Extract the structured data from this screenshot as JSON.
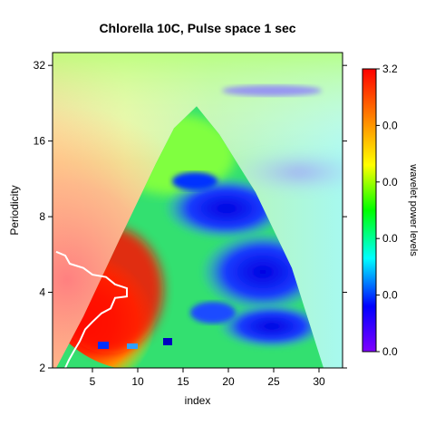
{
  "chart_data": {
    "type": "heatmap",
    "title": "Chlorella 10C, Pulse space 1 sec",
    "xlabel": "index",
    "ylabel": "Periodicity",
    "xlim": [
      0.6,
      32.6
    ],
    "ylim": [
      2,
      36
    ],
    "y_scale": "log2",
    "x_ticks": [
      5,
      10,
      15,
      20,
      25,
      30
    ],
    "x_tick_labels": [
      "5",
      "10",
      "15",
      "20",
      "25",
      "30"
    ],
    "y_ticks": [
      2,
      4,
      8,
      16,
      32
    ],
    "y_tick_labels": [
      "2",
      "4",
      "8",
      "16",
      "32"
    ],
    "colorbar": {
      "label": "wavelet power levels",
      "tick_labels": [
        "3.2",
        "0.0",
        "0.0",
        "0.0",
        "0.0",
        "0.0"
      ],
      "colors": [
        "#ff0000",
        "#ff8000",
        "#ffff00",
        "#00ff00",
        "#00ffff",
        "#0000ff",
        "#8000ff"
      ]
    },
    "cone_of_influence": {
      "x": [
        1,
        4,
        8,
        12,
        14,
        16.5,
        19,
        23,
        27,
        30.5
      ],
      "y": [
        2,
        3.2,
        6.5,
        13,
        18,
        22,
        17,
        10,
        5,
        2
      ]
    },
    "regions": [
      {
        "name": "high-power",
        "x_center": 8,
        "y_center": 4.0,
        "level": 3.0
      },
      {
        "name": "low-power",
        "x_center": 25,
        "y_center": 4.5,
        "level": 0.3
      }
    ],
    "grid": false,
    "legend": "right"
  }
}
